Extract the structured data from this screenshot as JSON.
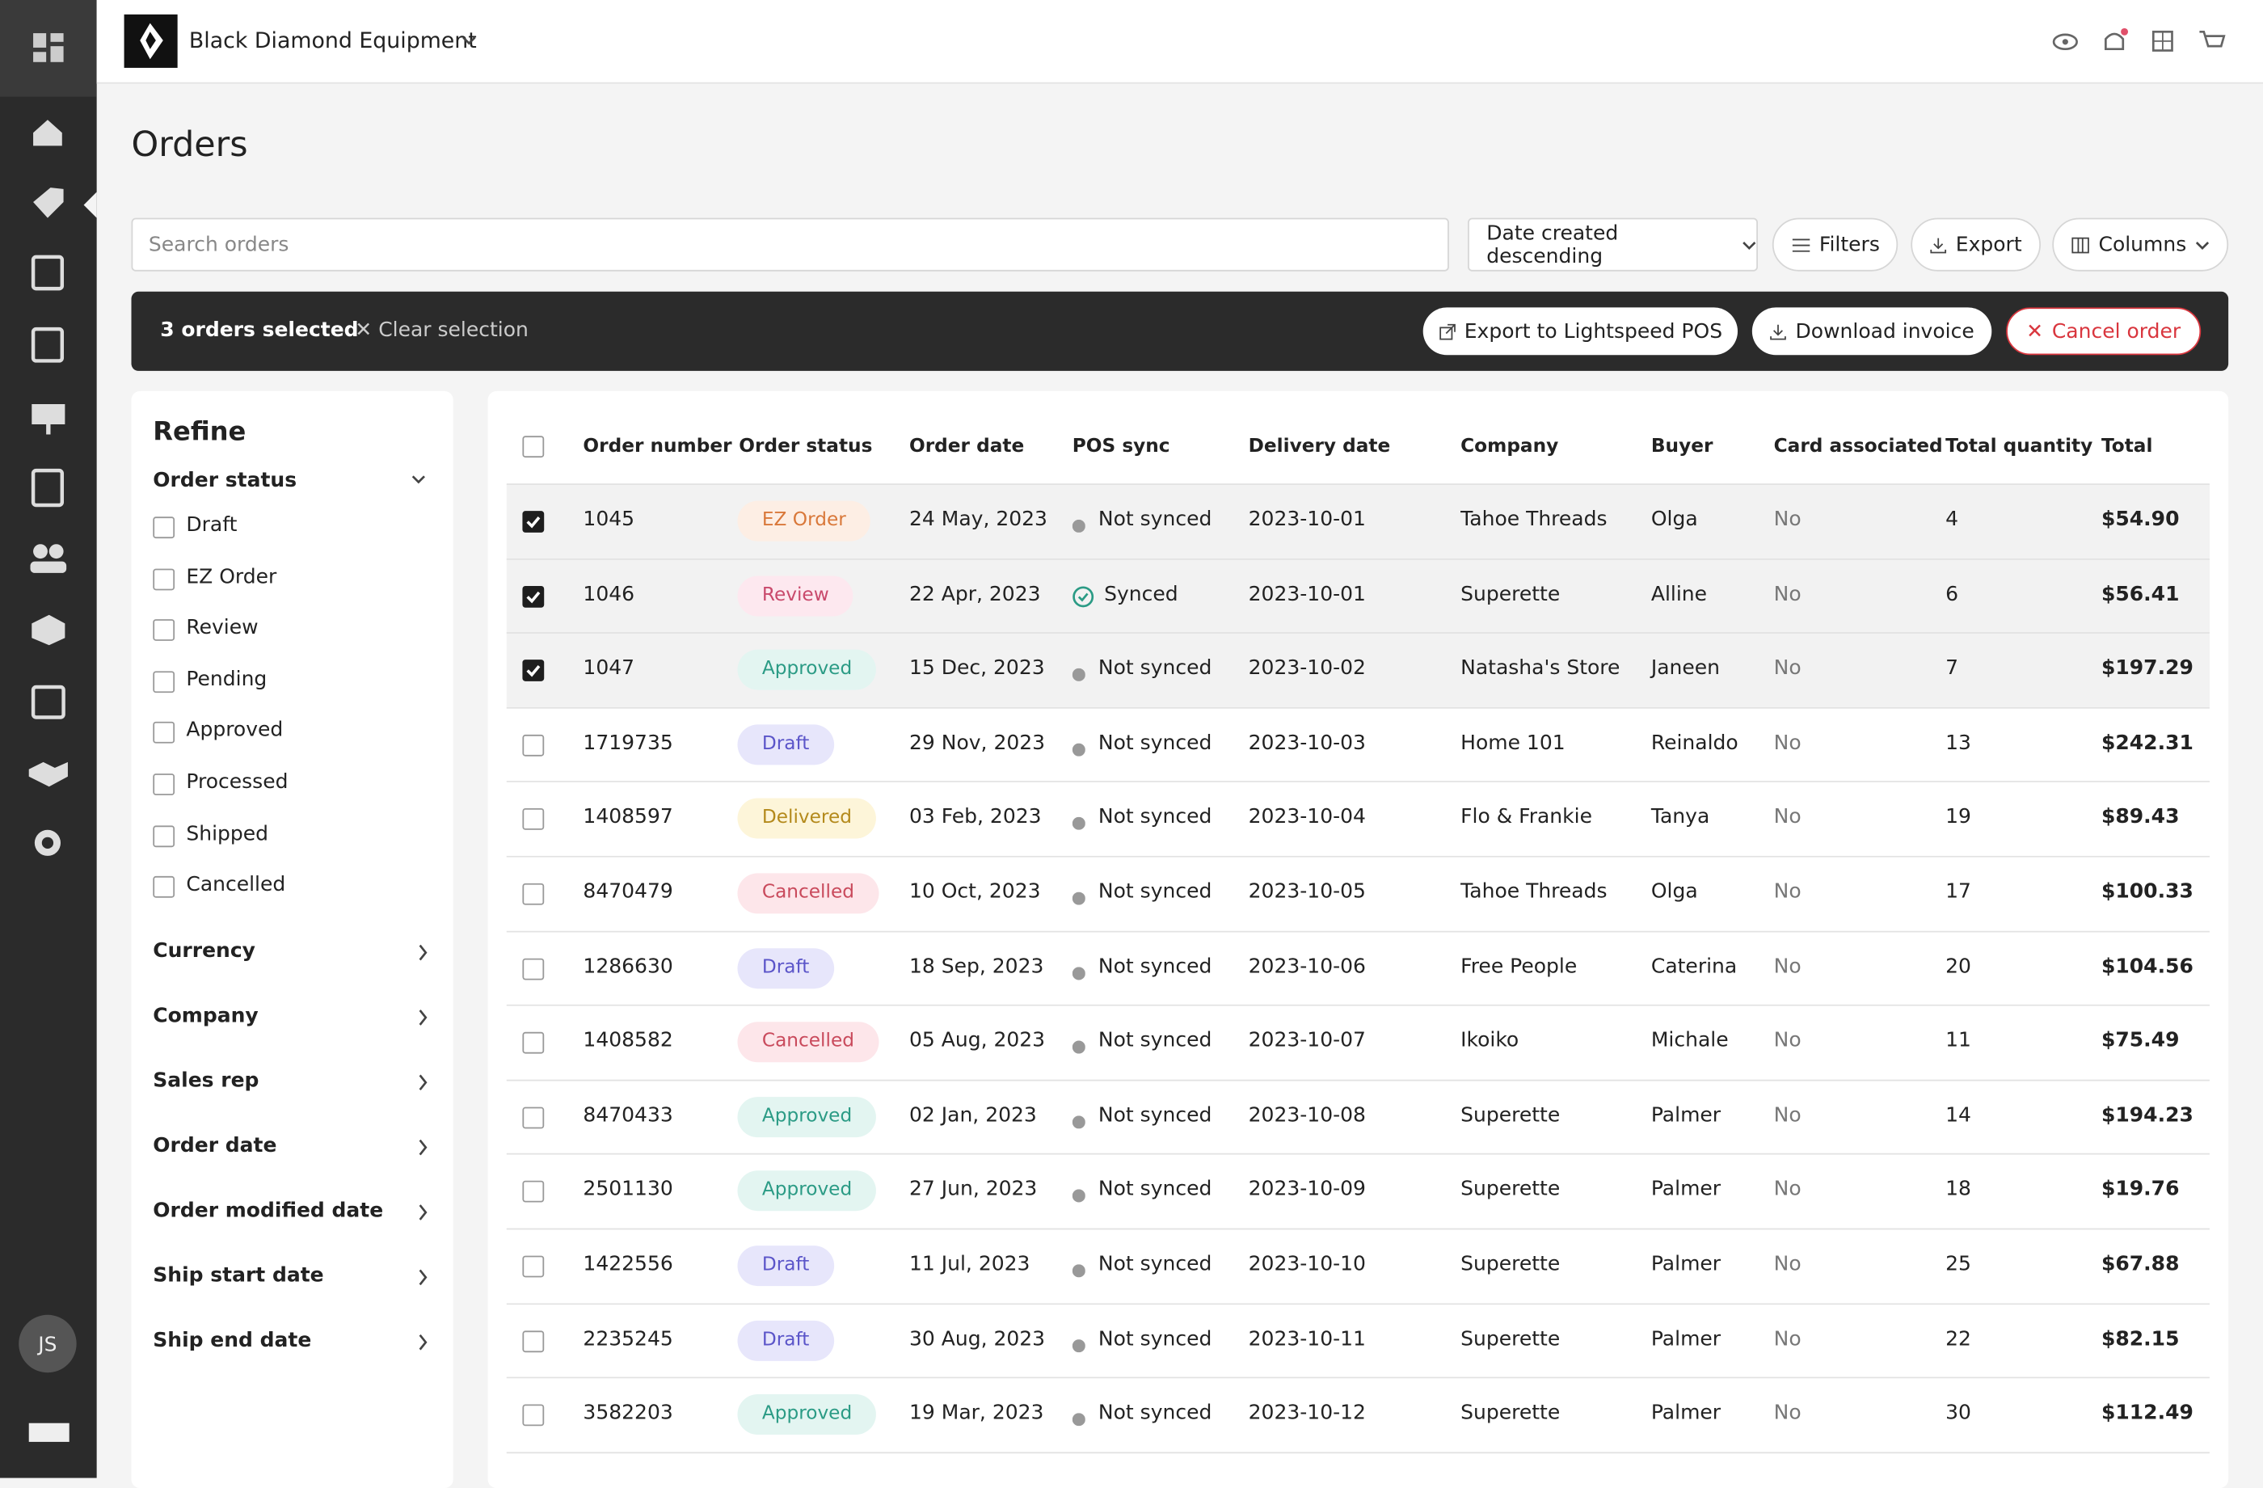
{
  "header": {
    "brand": "Black Diamond Equipment",
    "avatar": "JS"
  },
  "page": {
    "title": "Orders"
  },
  "toolbar": {
    "search_placeholder": "Search orders",
    "sort": "Date created descending",
    "filters": "Filters",
    "export": "Export",
    "columns": "Columns"
  },
  "selection_bar": {
    "count": "3 orders selected",
    "clear": "Clear selection",
    "export_pos": "Export to Lightspeed POS",
    "download": "Download invoice",
    "cancel": "Cancel order"
  },
  "refine": {
    "title": "Refine",
    "order_status": {
      "label": "Order status",
      "options": [
        "Draft",
        "EZ Order",
        "Review",
        "Pending",
        "Approved",
        "Processed",
        "Shipped",
        "Cancelled"
      ]
    },
    "sections": [
      "Currency",
      "Company",
      "Sales rep",
      "Order date",
      "Order modified date",
      "Ship start date",
      "Ship end date"
    ]
  },
  "table": {
    "columns": [
      "Order number",
      "Order status",
      "Order date",
      "POS sync",
      "Delivery date",
      "Company",
      "Buyer",
      "Card associated",
      "Total quantity",
      "Total"
    ],
    "rows": [
      {
        "selected": true,
        "synced": false,
        "badge": {
          "bg": "#fdeee4",
          "fg": "#d9783a"
        },
        "cells": [
          "1045",
          "EZ Order",
          "24 May, 2023",
          "Not synced",
          "2023-10-01",
          "Tahoe Threads",
          "Olga",
          "No",
          "4",
          "$54.90"
        ]
      },
      {
        "selected": true,
        "synced": true,
        "badge": {
          "bg": "#fde8ef",
          "fg": "#c94a6c"
        },
        "cells": [
          "1046",
          "Review",
          "22 Apr, 2023",
          "Synced",
          "2023-10-01",
          "Superette",
          "Alline",
          "No",
          "6",
          "$56.41"
        ]
      },
      {
        "selected": true,
        "synced": false,
        "badge": {
          "bg": "#e3f5f1",
          "fg": "#2b9b85"
        },
        "cells": [
          "1047",
          "Approved",
          "15 Dec, 2023",
          "Not synced",
          "2023-10-02",
          "Natasha's Store",
          "Janeen",
          "No",
          "7",
          "$197.29"
        ]
      },
      {
        "selected": false,
        "synced": false,
        "badge": {
          "bg": "#e7e6fb",
          "fg": "#5b55c9"
        },
        "cells": [
          "1719735",
          "Draft",
          "29 Nov, 2023",
          "Not synced",
          "2023-10-03",
          "Home 101",
          "Reinaldo",
          "No",
          "13",
          "$242.31"
        ]
      },
      {
        "selected": false,
        "synced": false,
        "badge": {
          "bg": "#fdf5d9",
          "fg": "#b48a1c"
        },
        "cells": [
          "1408597",
          "Delivered",
          "03 Feb, 2023",
          "Not synced",
          "2023-10-04",
          "Flo & Frankie",
          "Tanya",
          "No",
          "19",
          "$89.43"
        ]
      },
      {
        "selected": false,
        "synced": false,
        "badge": {
          "bg": "#fde6ea",
          "fg": "#c94a5c"
        },
        "cells": [
          "8470479",
          "Cancelled",
          "10 Oct, 2023",
          "Not synced",
          "2023-10-05",
          "Tahoe Threads",
          "Olga",
          "No",
          "17",
          "$100.33"
        ]
      },
      {
        "selected": false,
        "synced": false,
        "badge": {
          "bg": "#e7e6fb",
          "fg": "#5b55c9"
        },
        "cells": [
          "1286630",
          "Draft",
          "18 Sep, 2023",
          "Not synced",
          "2023-10-06",
          "Free People",
          "Caterina",
          "No",
          "20",
          "$104.56"
        ]
      },
      {
        "selected": false,
        "synced": false,
        "badge": {
          "bg": "#fde6ea",
          "fg": "#c94a5c"
        },
        "cells": [
          "1408582",
          "Cancelled",
          "05 Aug, 2023",
          "Not synced",
          "2023-10-07",
          "Ikoiko",
          "Michale",
          "No",
          "11",
          "$75.49"
        ]
      },
      {
        "selected": false,
        "synced": false,
        "badge": {
          "bg": "#e3f5f1",
          "fg": "#2b9b85"
        },
        "cells": [
          "8470433",
          "Approved",
          "02 Jan, 2023",
          "Not synced",
          "2023-10-08",
          "Superette",
          "Palmer",
          "No",
          "14",
          "$194.23"
        ]
      },
      {
        "selected": false,
        "synced": false,
        "badge": {
          "bg": "#e3f5f1",
          "fg": "#2b9b85"
        },
        "cells": [
          "2501130",
          "Approved",
          "27 Jun, 2023",
          "Not synced",
          "2023-10-09",
          "Superette",
          "Palmer",
          "No",
          "18",
          "$19.76"
        ]
      },
      {
        "selected": false,
        "synced": false,
        "badge": {
          "bg": "#e7e6fb",
          "fg": "#5b55c9"
        },
        "cells": [
          "1422556",
          "Draft",
          "11 Jul, 2023",
          "Not synced",
          "2023-10-10",
          "Superette",
          "Palmer",
          "No",
          "25",
          "$67.88"
        ]
      },
      {
        "selected": false,
        "synced": false,
        "badge": {
          "bg": "#e7e6fb",
          "fg": "#5b55c9"
        },
        "cells": [
          "2235245",
          "Draft",
          "30 Aug, 2023",
          "Not synced",
          "2023-10-11",
          "Superette",
          "Palmer",
          "No",
          "22",
          "$82.15"
        ]
      },
      {
        "selected": false,
        "synced": false,
        "badge": {
          "bg": "#e3f5f1",
          "fg": "#2b9b85"
        },
        "cells": [
          "3582203",
          "Approved",
          "19 Mar, 2023",
          "Not synced",
          "2023-10-12",
          "Superette",
          "Palmer",
          "No",
          "30",
          "$112.49"
        ]
      }
    ]
  }
}
